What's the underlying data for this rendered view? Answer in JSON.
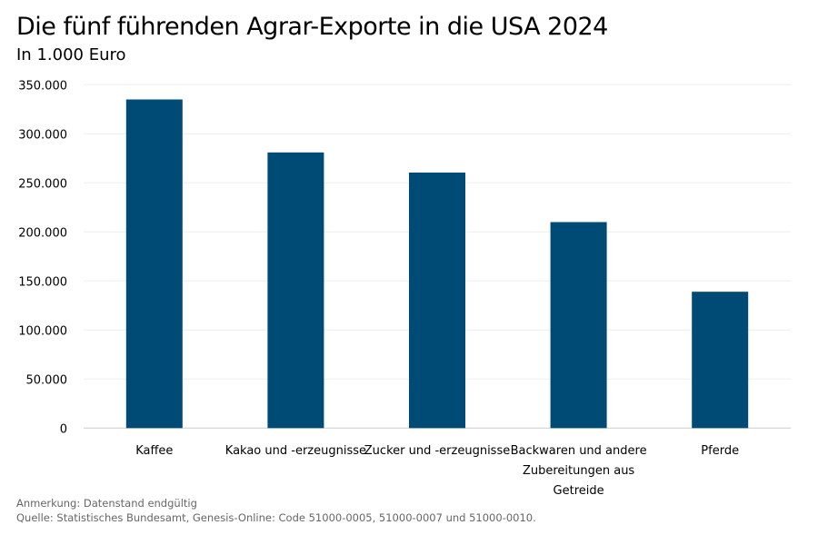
{
  "chart_data": {
    "type": "bar",
    "title": "Die fünf führenden Agrar-Exporte in die USA 2024",
    "subtitle": "In 1.000 Euro",
    "categories": [
      [
        "Kaffee"
      ],
      [
        "Kakao und -erzeugnisse"
      ],
      [
        "Zucker und -erzeugnisse"
      ],
      [
        "Backwaren und andere",
        "Zubereitungen aus",
        "Getreide"
      ],
      [
        "Pferde"
      ]
    ],
    "values": [
      335000,
      281000,
      260500,
      210000,
      139000
    ],
    "ylim": [
      0,
      350000
    ],
    "yticks": [
      0,
      50000,
      100000,
      150000,
      200000,
      250000,
      300000,
      350000
    ],
    "ytick_labels": [
      "0",
      "50.000",
      "100.000",
      "150.000",
      "200.000",
      "250.000",
      "300.000",
      "350.000"
    ],
    "grid": true,
    "bar_color": "#004b76"
  },
  "notes": {
    "remark": "Anmerkung: Datenstand endgültig",
    "source": "Quelle: Statistisches Bundesamt, Genesis-Online: Code 51000-0005, 51000-0007 und 51000-0010."
  }
}
